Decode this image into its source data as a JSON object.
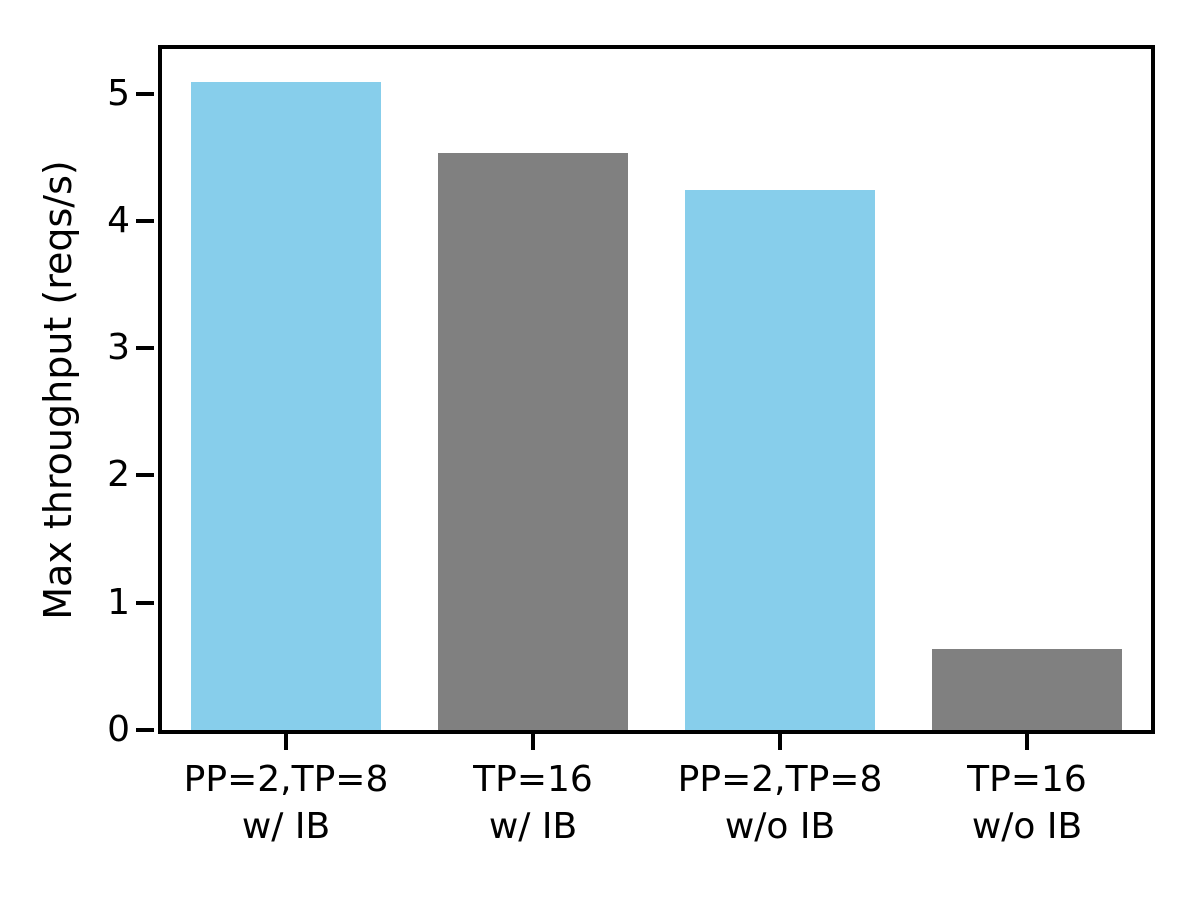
{
  "chart_data": {
    "type": "bar",
    "categories": [
      "PP=2,TP=8\nw/ IB",
      "TP=16\nw/ IB",
      "PP=2,TP=8\nw/o IB",
      "TP=16\nw/o IB"
    ],
    "values": [
      5.09,
      4.53,
      4.24,
      0.64
    ],
    "bar_colors": [
      "#87CEEB",
      "#808080",
      "#87CEEB",
      "#808080"
    ],
    "title": "",
    "xlabel": "",
    "ylabel": "Max throughput (reqs/s)",
    "ylim": [
      0,
      5.35
    ],
    "yticks": [
      0,
      1,
      2,
      3,
      4,
      5
    ],
    "grid": false,
    "legend_position": "none",
    "bar_width_fraction": 0.192,
    "axis_color": "#000000",
    "background_color": "#ffffff"
  }
}
